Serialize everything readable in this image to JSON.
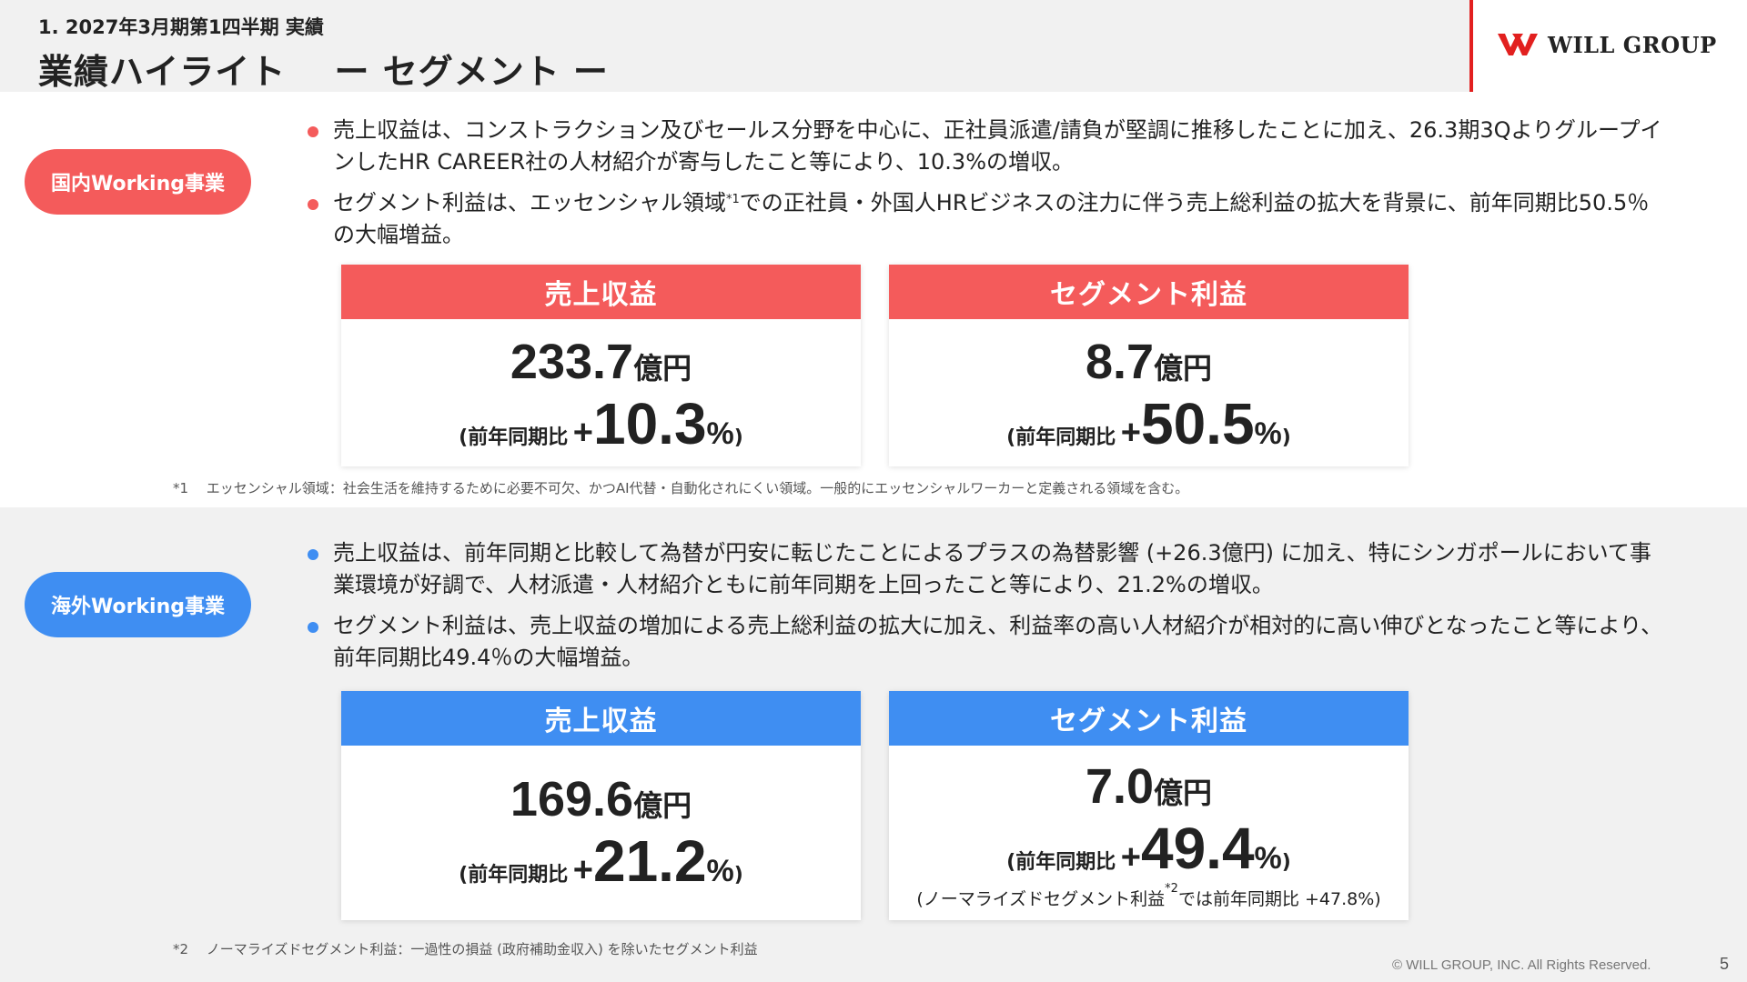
{
  "header": {
    "subtitle": "1. 2027年3月期第1四半期 実績",
    "title": "業績ハイライト　 ー セグメント ー",
    "logo_text": "WILL GROUP",
    "accent_color": "#e2201f"
  },
  "domestic": {
    "label": "国内Working事業",
    "color": "#f45b5b",
    "bullet1": "売上収益は、コンストラクション及びセールス分野を中心に、正社員派遣/請負が堅調に推移したことに加え、26.3期3QよりグループインしたHR CAREER社の人材紹介が寄与したこと等により、10.3%の増収。",
    "bullet2_pre": "セグメント利益は、エッセンシャル領域",
    "bullet2_sup": "*1",
    "bullet2_post": "での正社員・外国人HRビジネスの注力に伴う売上総利益の拡大を背景に、前年同期比50.5％の大幅増益。",
    "revenue": {
      "heading": "売上収益",
      "value": "233.7",
      "unit": "億円",
      "yoy_label": "(前年同期比",
      "yoy_sign": "+",
      "yoy_value": "10.3",
      "yoy_pct": "%",
      "yoy_close": ")"
    },
    "profit": {
      "heading": "セグメント利益",
      "value": "8.7",
      "unit": "億円",
      "yoy_label": "(前年同期比",
      "yoy_sign": "+",
      "yoy_value": "50.5",
      "yoy_pct": "%",
      "yoy_close": ")"
    },
    "footnote": "*1　 エッセンシャル領域：社会生活を維持するために必要不可欠、かつAI代替・自動化されにくい領域。一般的にエッセンシャルワーカーと定義される領域を含む。"
  },
  "overseas": {
    "label": "海外Working事業",
    "color": "#3f8ef2",
    "bullet1": "売上収益は、前年同期と比較して為替が円安に転じたことによるプラスの為替影響 (+26.3億円) に加え、特にシンガポールにおいて事業環境が好調で、人材派遣・人材紹介ともに前年同期を上回ったこと等により、21.2%の増収。",
    "bullet2": "セグメント利益は、売上収益の増加による売上総利益の拡大に加え、利益率の高い人材紹介が相対的に高い伸びとなったこと等により、前年同期比49.4％の大幅増益。",
    "revenue": {
      "heading": "売上収益",
      "value": "169.6",
      "unit": "億円",
      "yoy_label": "(前年同期比",
      "yoy_sign": "+",
      "yoy_value": "21.2",
      "yoy_pct": "%",
      "yoy_close": ")"
    },
    "profit": {
      "heading": "セグメント利益",
      "value": "7.0",
      "unit": "億円",
      "yoy_label": "(前年同期比",
      "yoy_sign": "+",
      "yoy_value": "49.4",
      "yoy_pct": "%",
      "yoy_close": ")",
      "note_pre": "(ノーマライズドセグメント利益",
      "note_sup": "*2",
      "note_post": "では前年同期比 +47.8%)"
    },
    "footnote": "*2　 ノーマライズドセグメント利益：一過性の損益 (政府補助金収入) を除いたセグメント利益"
  },
  "footer": {
    "copyright": "© WILL GROUP, INC. All Rights Reserved.",
    "page": "5"
  }
}
